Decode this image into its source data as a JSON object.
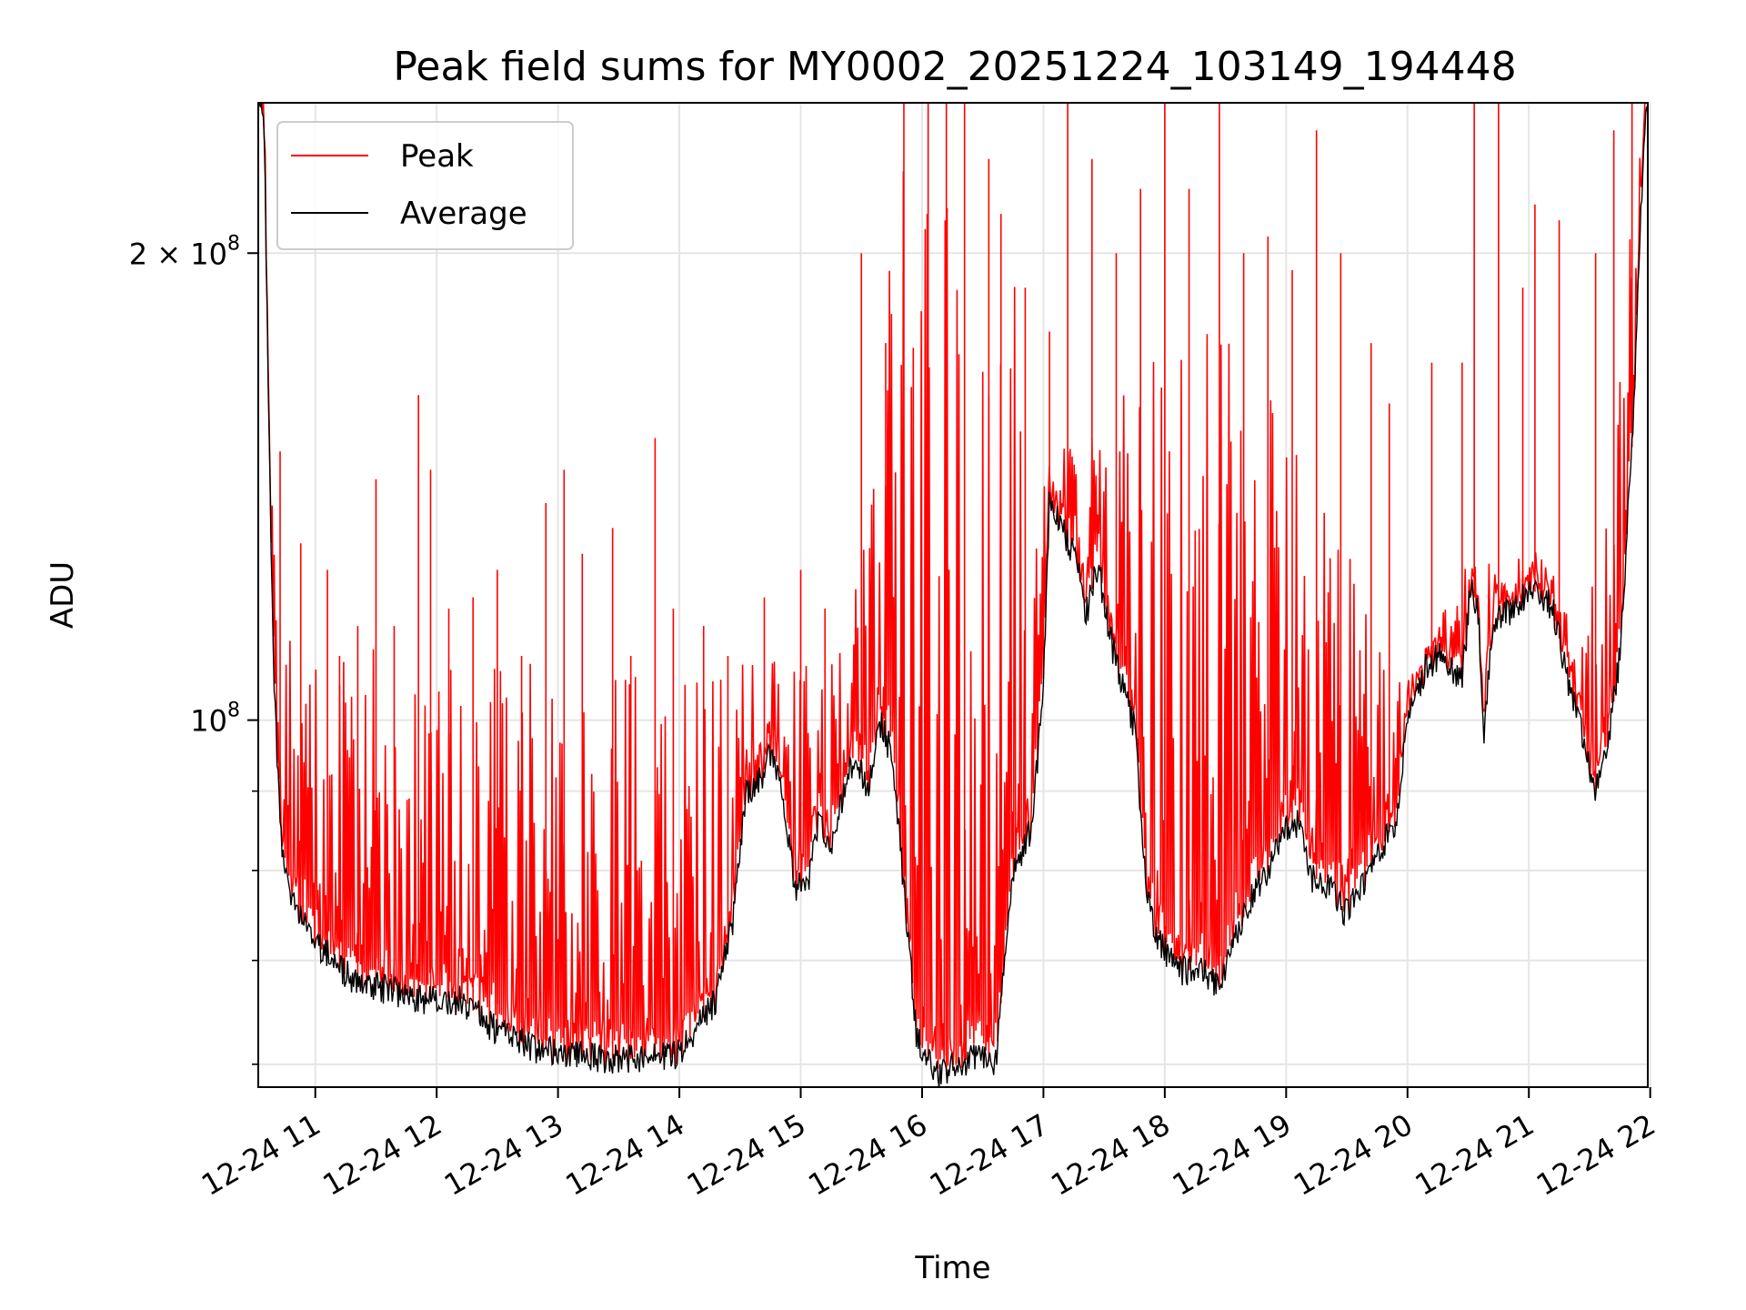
{
  "chart_data": {
    "type": "line",
    "title": "Peak field sums for MY0002_20251224_103149_194448",
    "xlabel": "Time",
    "ylabel": "ADU",
    "yscale": "log",
    "ylim": [
      58000000,
      250000000
    ],
    "xlim_hours": [
      10.53,
      21.98
    ],
    "grid": true,
    "legend": {
      "position": "top-left",
      "entries": [
        "Peak",
        "Average"
      ]
    },
    "colors": {
      "Peak": "#ff0000",
      "Average": "#000000",
      "grid": "#e5e5e5"
    },
    "x_ticks": [
      {
        "hour": 11,
        "label": "12-24 11"
      },
      {
        "hour": 12,
        "label": "12-24 12"
      },
      {
        "hour": 13,
        "label": "12-24 13"
      },
      {
        "hour": 14,
        "label": "12-24 14"
      },
      {
        "hour": 15,
        "label": "12-24 15"
      },
      {
        "hour": 16,
        "label": "12-24 16"
      },
      {
        "hour": 17,
        "label": "12-24 17"
      },
      {
        "hour": 18,
        "label": "12-24 18"
      },
      {
        "hour": 19,
        "label": "12-24 19"
      },
      {
        "hour": 20,
        "label": "12-24 20"
      },
      {
        "hour": 21,
        "label": "12-24 21"
      },
      {
        "hour": 22,
        "label": "12-24 22"
      }
    ],
    "y_major_ticks": [
      {
        "value": 100000000,
        "base": "10",
        "exp": "8",
        "mult": ""
      },
      {
        "value": 200000000,
        "base": "10",
        "exp": "8",
        "mult": "2 × "
      }
    ],
    "y_minor_ticks": [
      60000000,
      70000000,
      80000000,
      90000000
    ],
    "series": [
      {
        "name": "Average",
        "points": [
          [
            10.53,
            250000000
          ],
          [
            10.58,
            240000000
          ],
          [
            10.62,
            150000000
          ],
          [
            10.66,
            105000000
          ],
          [
            10.72,
            83000000
          ],
          [
            10.8,
            77000000
          ],
          [
            11.0,
            72000000
          ],
          [
            11.3,
            68000000
          ],
          [
            11.6,
            67000000
          ],
          [
            11.9,
            66000000
          ],
          [
            12.2,
            66000000
          ],
          [
            12.5,
            63000000
          ],
          [
            12.8,
            61500000
          ],
          [
            13.1,
            61000000
          ],
          [
            13.4,
            60500000
          ],
          [
            13.7,
            60500000
          ],
          [
            14.0,
            61000000
          ],
          [
            14.3,
            66000000
          ],
          [
            14.45,
            75000000
          ],
          [
            14.55,
            90000000
          ],
          [
            14.65,
            91000000
          ],
          [
            14.75,
            95000000
          ],
          [
            14.85,
            89000000
          ],
          [
            14.95,
            78000000
          ],
          [
            15.05,
            78000000
          ],
          [
            15.15,
            86000000
          ],
          [
            15.25,
            82000000
          ],
          [
            15.35,
            90000000
          ],
          [
            15.45,
            95000000
          ],
          [
            15.55,
            90000000
          ],
          [
            15.65,
            100000000
          ],
          [
            15.75,
            95000000
          ],
          [
            15.85,
            78000000
          ],
          [
            15.95,
            63000000
          ],
          [
            16.1,
            59000000
          ],
          [
            16.3,
            60000000
          ],
          [
            16.5,
            61000000
          ],
          [
            16.6,
            59500000
          ],
          [
            16.75,
            80000000
          ],
          [
            16.9,
            85000000
          ],
          [
            17.0,
            105000000
          ],
          [
            17.05,
            140000000
          ],
          [
            17.15,
            133000000
          ],
          [
            17.3,
            125000000
          ],
          [
            17.35,
            117000000
          ],
          [
            17.45,
            126000000
          ],
          [
            17.55,
            113000000
          ],
          [
            17.65,
            105000000
          ],
          [
            17.75,
            99000000
          ],
          [
            17.85,
            77000000
          ],
          [
            17.95,
            72000000
          ],
          [
            18.1,
            69000000
          ],
          [
            18.3,
            69000000
          ],
          [
            18.45,
            67000000
          ],
          [
            18.6,
            73000000
          ],
          [
            18.75,
            78000000
          ],
          [
            18.85,
            80000000
          ],
          [
            19.0,
            85000000
          ],
          [
            19.1,
            86000000
          ],
          [
            19.2,
            79000000
          ],
          [
            19.3,
            79000000
          ],
          [
            19.5,
            75000000
          ],
          [
            19.65,
            79000000
          ],
          [
            19.75,
            82000000
          ],
          [
            19.9,
            86000000
          ],
          [
            20.0,
            100000000
          ],
          [
            20.15,
            108000000
          ],
          [
            20.25,
            110000000
          ],
          [
            20.35,
            108000000
          ],
          [
            20.45,
            106000000
          ],
          [
            20.52,
            122000000
          ],
          [
            20.58,
            118000000
          ],
          [
            20.63,
            98000000
          ],
          [
            20.7,
            115000000
          ],
          [
            20.8,
            117000000
          ],
          [
            20.9,
            118000000
          ],
          [
            21.0,
            122000000
          ],
          [
            21.1,
            120000000
          ],
          [
            21.2,
            118000000
          ],
          [
            21.3,
            108000000
          ],
          [
            21.45,
            97000000
          ],
          [
            21.55,
            90000000
          ],
          [
            21.65,
            96000000
          ],
          [
            21.75,
            110000000
          ],
          [
            21.85,
            150000000
          ],
          [
            21.95,
            240000000
          ],
          [
            21.98,
            250000000
          ]
        ]
      },
      {
        "name": "Peak",
        "band": [
          [
            10.53,
            250000000
          ],
          [
            10.6,
            150000000
          ],
          [
            10.7,
            125000000
          ],
          [
            10.8,
            115000000
          ],
          [
            11.0,
            110000000
          ],
          [
            11.5,
            112000000
          ],
          [
            12.0,
            114000000
          ],
          [
            12.5,
            112000000
          ],
          [
            13.0,
            112000000
          ],
          [
            13.5,
            110000000
          ],
          [
            14.0,
            108000000
          ],
          [
            14.5,
            112000000
          ],
          [
            15.0,
            115000000
          ],
          [
            15.5,
            125000000
          ],
          [
            15.8,
            240000000
          ],
          [
            16.7,
            240000000
          ],
          [
            16.9,
            120000000
          ],
          [
            17.0,
            150000000
          ],
          [
            17.5,
            165000000
          ],
          [
            18.0,
            175000000
          ],
          [
            18.5,
            180000000
          ],
          [
            19.0,
            160000000
          ],
          [
            19.5,
            130000000
          ],
          [
            19.8,
            110000000
          ],
          [
            20.0,
            105000000
          ],
          [
            20.5,
            128000000
          ],
          [
            21.0,
            128000000
          ],
          [
            21.4,
            115000000
          ],
          [
            21.6,
            150000000
          ],
          [
            21.8,
            200000000
          ],
          [
            21.98,
            250000000
          ]
        ],
        "spikes": [
          [
            10.71,
            149000000
          ],
          [
            10.88,
            130000000
          ],
          [
            11.1,
            125000000
          ],
          [
            11.2,
            110000000
          ],
          [
            11.35,
            115000000
          ],
          [
            11.5,
            143000000
          ],
          [
            11.65,
            115000000
          ],
          [
            11.85,
            162000000
          ],
          [
            11.95,
            145000000
          ],
          [
            12.1,
            118000000
          ],
          [
            12.3,
            120000000
          ],
          [
            12.5,
            125000000
          ],
          [
            12.7,
            110000000
          ],
          [
            12.9,
            138000000
          ],
          [
            13.05,
            145000000
          ],
          [
            13.2,
            128000000
          ],
          [
            13.45,
            133000000
          ],
          [
            13.6,
            110000000
          ],
          [
            13.8,
            152000000
          ],
          [
            13.95,
            118000000
          ],
          [
            14.2,
            115000000
          ],
          [
            14.4,
            110000000
          ],
          [
            14.7,
            120000000
          ],
          [
            15.0,
            125000000
          ],
          [
            15.2,
            118000000
          ],
          [
            15.5,
            200000000
          ],
          [
            15.7,
            175000000
          ],
          [
            15.85,
            250000000
          ],
          [
            16.05,
            250000000
          ],
          [
            16.2,
            250000000
          ],
          [
            16.35,
            250000000
          ],
          [
            16.55,
            230000000
          ],
          [
            16.65,
            212000000
          ],
          [
            16.85,
            190000000
          ],
          [
            17.05,
            178000000
          ],
          [
            17.2,
            250000000
          ],
          [
            17.4,
            230000000
          ],
          [
            17.6,
            200000000
          ],
          [
            17.8,
            220000000
          ],
          [
            18.0,
            250000000
          ],
          [
            18.2,
            220000000
          ],
          [
            18.45,
            250000000
          ],
          [
            18.65,
            200000000
          ],
          [
            18.85,
            205000000
          ],
          [
            19.05,
            195000000
          ],
          [
            19.25,
            240000000
          ],
          [
            19.45,
            200000000
          ],
          [
            19.7,
            175000000
          ],
          [
            19.85,
            160000000
          ],
          [
            20.2,
            170000000
          ],
          [
            20.45,
            170000000
          ],
          [
            20.55,
            250000000
          ],
          [
            20.75,
            250000000
          ],
          [
            20.95,
            190000000
          ],
          [
            21.05,
            215000000
          ],
          [
            21.25,
            210000000
          ],
          [
            21.55,
            200000000
          ],
          [
            21.7,
            240000000
          ],
          [
            21.85,
            250000000
          ]
        ]
      }
    ]
  }
}
